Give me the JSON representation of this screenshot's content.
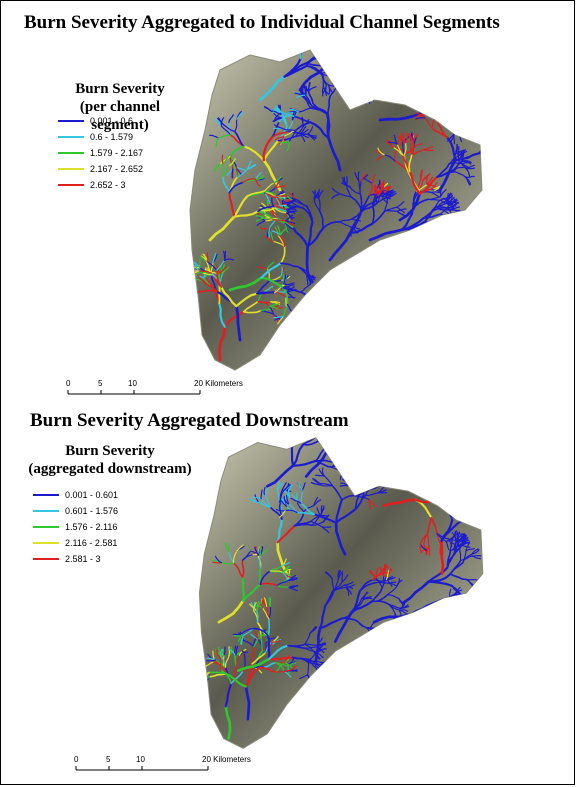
{
  "colors": {
    "class1": "#1c1ccf",
    "class2": "#34c8e0",
    "class3": "#2ec72e",
    "class4": "#e0e02a",
    "class5": "#e02020",
    "terrain_light": "#c9c9b0",
    "terrain_dark": "#5a5a4e"
  },
  "top": {
    "title": "Burn Severity Aggregated to Individual Channel Segments",
    "legend_title": "Burn Severity",
    "legend_subtitle": "(per channel segment)",
    "legend": [
      {
        "label": "0.001 - 0.6",
        "color_key": "class1",
        "icon": "line-swatch"
      },
      {
        "label": "0.6 - 1.579",
        "color_key": "class2",
        "icon": "line-swatch"
      },
      {
        "label": "1.579 - 2.167",
        "color_key": "class3",
        "icon": "line-swatch"
      },
      {
        "label": "2.167 - 2.652",
        "color_key": "class4",
        "icon": "line-swatch"
      },
      {
        "label": "2.652 - 3",
        "color_key": "class5",
        "icon": "line-swatch"
      }
    ],
    "scale": {
      "ticks": [
        "0",
        "5",
        "10",
        "20 Kilometers"
      ]
    }
  },
  "bottom": {
    "title": "Burn Severity Aggregated Downstream",
    "legend_title": "Burn Severity",
    "legend_subtitle": "(aggregated downstream)",
    "legend": [
      {
        "label": "0.001 - 0.601",
        "color_key": "class1",
        "icon": "line-swatch"
      },
      {
        "label": "0.601 - 1.576",
        "color_key": "class2",
        "icon": "line-swatch"
      },
      {
        "label": "1.576 - 2.116",
        "color_key": "class3",
        "icon": "line-swatch"
      },
      {
        "label": "2.116 - 2.581",
        "color_key": "class4",
        "icon": "line-swatch"
      },
      {
        "label": "2.581 - 3",
        "color_key": "class5",
        "icon": "line-swatch"
      }
    ],
    "scale": {
      "ticks": [
        "0",
        "5",
        "10",
        "20 Kilometers"
      ]
    }
  }
}
